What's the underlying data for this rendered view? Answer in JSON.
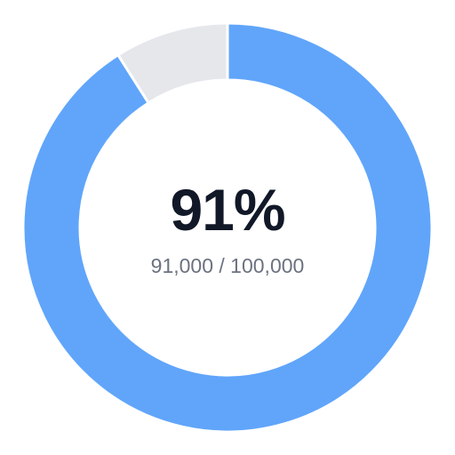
{
  "progress": {
    "percent_label": "91%",
    "detail_label": "91,000 / 100,000",
    "current": 91000,
    "total": 100000,
    "fraction": 0.91
  },
  "colors": {
    "filled": "#60a5fa",
    "remaining": "#e5e7eb",
    "separator": "#ffffff",
    "primary_text": "#111827",
    "secondary_text": "#6b7280"
  }
}
